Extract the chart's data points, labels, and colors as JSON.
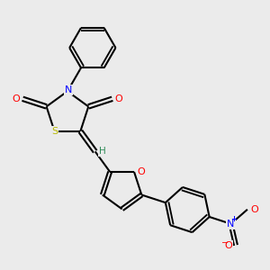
{
  "bg_color": "#ebebeb",
  "bond_color": "#000000",
  "atom_colors": {
    "O": "#ff0000",
    "N": "#0000ff",
    "S": "#b8b800",
    "H": "#2e8b57",
    "C": "#000000"
  },
  "line_width": 1.5,
  "figsize": [
    3.0,
    3.0
  ],
  "dpi": 100
}
